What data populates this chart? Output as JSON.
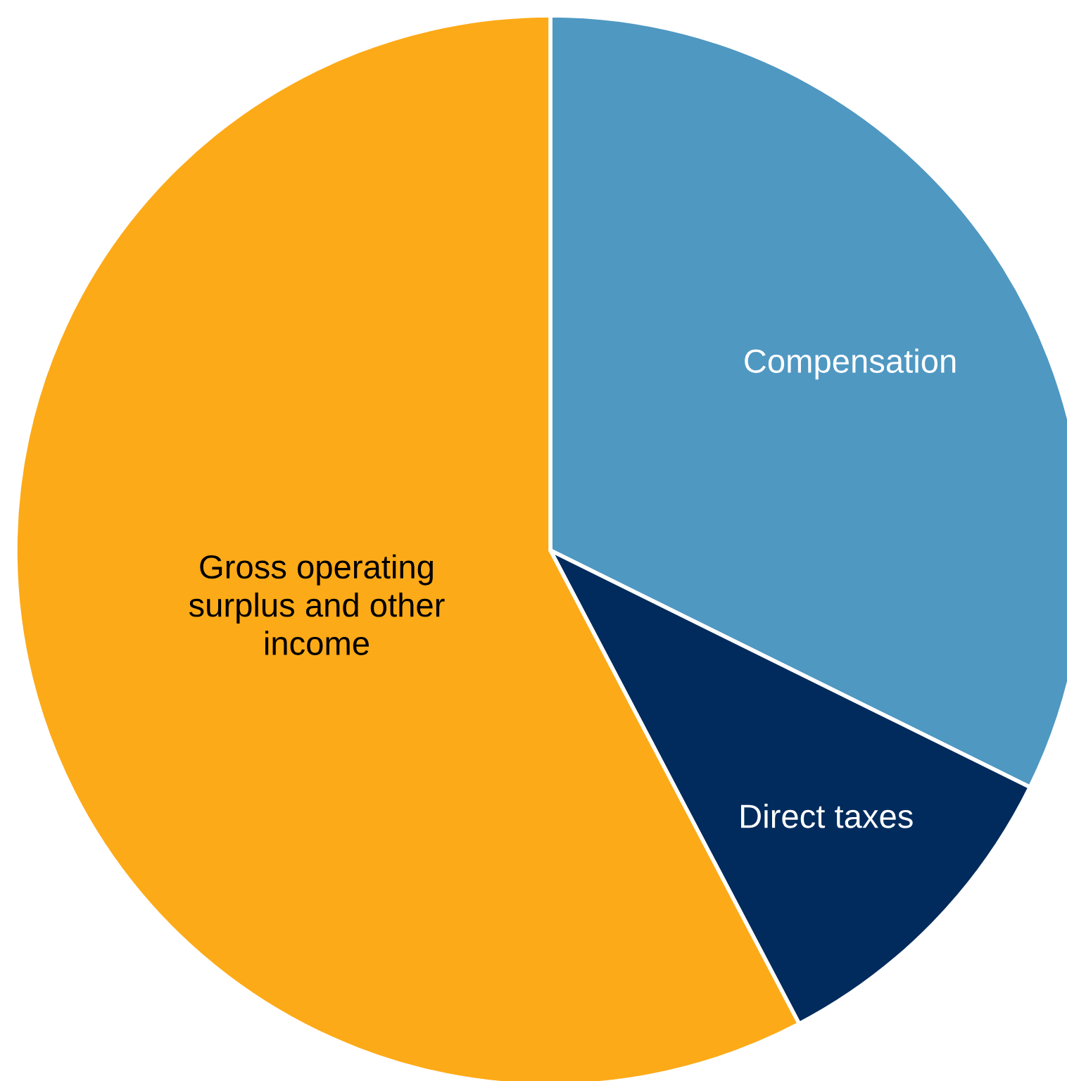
{
  "chart_data": {
    "type": "pie",
    "categories": [
      "Compensation",
      "Direct taxes",
      "Gross operating\nsurplus and other\nincome"
    ],
    "values": [
      32.3,
      10.0,
      57.7
    ],
    "colors": [
      "#4f98c2",
      "#002b5c",
      "#fdaa18"
    ]
  }
}
